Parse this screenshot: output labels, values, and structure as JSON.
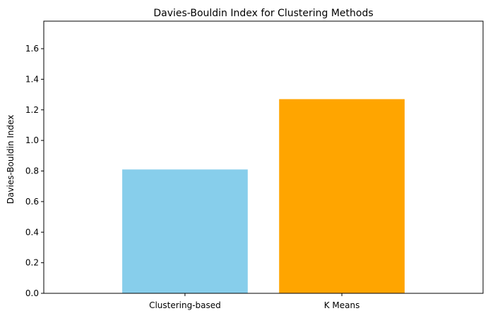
{
  "chart_data": {
    "type": "bar",
    "title": "Davies-Bouldin Index for Clustering Methods",
    "xlabel": "",
    "ylabel": "Davies-Bouldin Index",
    "categories": [
      "Clustering-based",
      "K Means"
    ],
    "values": [
      0.81,
      1.27
    ],
    "colors": [
      "#87ceeb",
      "#ffa500"
    ],
    "ylim": [
      0,
      1.78
    ],
    "yticks": [
      "0.0",
      "0.2",
      "0.4",
      "0.6",
      "0.8",
      "1.0",
      "1.2",
      "1.4",
      "1.6"
    ],
    "grid": false,
    "legend": "none"
  }
}
